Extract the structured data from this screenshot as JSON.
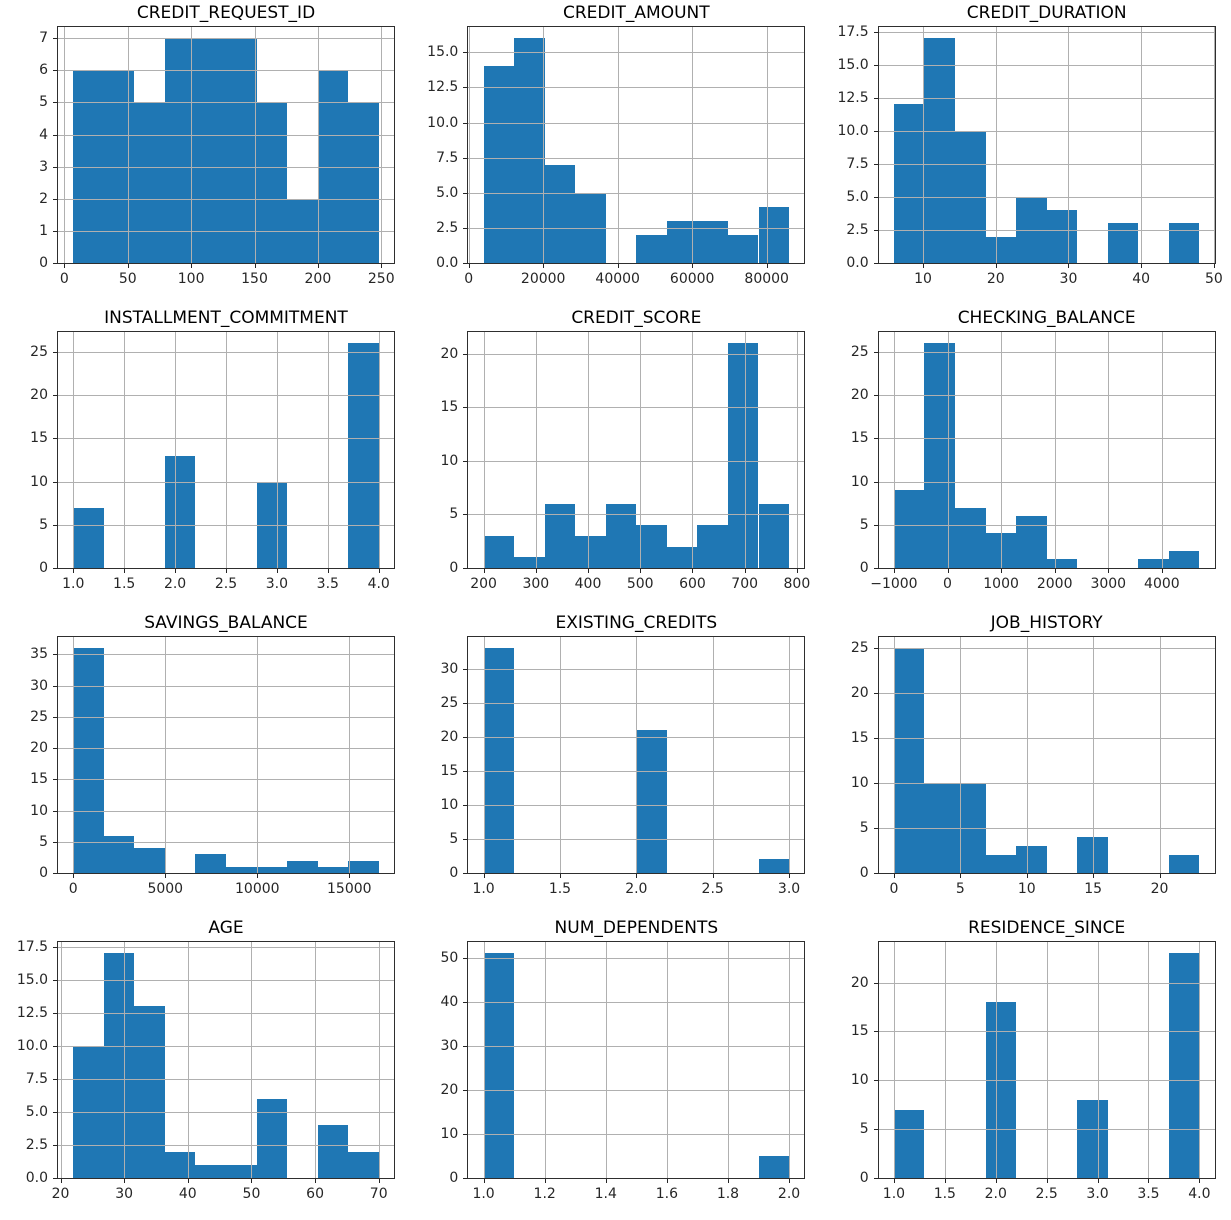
{
  "figure": {
    "background": "#ffffff",
    "bar_color": "#1f77b4",
    "grid_color": "#b0b0b0",
    "spine_color": "#2e2e2e",
    "text_color": "#262626",
    "title_color": "#000000"
  },
  "grid": {
    "rows": 4,
    "cols": 3
  },
  "chart_data": [
    {
      "type": "bar",
      "subtype": "histogram",
      "title": "CREDIT_REQUEST_ID",
      "bin_start": 7,
      "bin_end": 248,
      "counts": [
        6,
        6,
        5,
        7,
        7,
        7,
        5,
        2,
        6,
        5
      ],
      "xlim": [
        -5.05,
        260.05
      ],
      "ylim": [
        0,
        7.35
      ],
      "x_ticks": [
        0,
        50,
        100,
        150,
        200,
        250
      ],
      "x_tick_labels": [
        "0",
        "50",
        "100",
        "150",
        "200",
        "250"
      ],
      "y_ticks": [
        0,
        1,
        2,
        3,
        4,
        5,
        6,
        7
      ],
      "y_tick_labels": [
        "0",
        "1",
        "2",
        "3",
        "4",
        "5",
        "6",
        "7"
      ],
      "grid": true
    },
    {
      "type": "bar",
      "subtype": "histogram",
      "title": "CREDIT_AMOUNT",
      "bin_start": 4000,
      "bin_end": 86000,
      "counts": [
        14,
        16,
        7,
        5,
        0,
        2,
        3,
        3,
        2,
        4
      ],
      "xlim": [
        -100,
        90100
      ],
      "ylim": [
        0,
        16.8
      ],
      "x_ticks": [
        0,
        20000,
        40000,
        60000,
        80000
      ],
      "x_tick_labels": [
        "0",
        "20000",
        "40000",
        "60000",
        "80000"
      ],
      "y_ticks": [
        0,
        2.5,
        5,
        7.5,
        10,
        12.5,
        15
      ],
      "y_tick_labels": [
        "0.0",
        "2.5",
        "5.0",
        "7.5",
        "10.0",
        "12.5",
        "15.0"
      ],
      "grid": true
    },
    {
      "type": "bar",
      "subtype": "histogram",
      "title": "CREDIT_DURATION",
      "bin_start": 6,
      "bin_end": 48,
      "counts": [
        12,
        17,
        10,
        2,
        5,
        4,
        0,
        3,
        0,
        3
      ],
      "xlim": [
        3.9,
        50.1
      ],
      "ylim": [
        0,
        17.85
      ],
      "x_ticks": [
        10,
        20,
        30,
        40,
        50
      ],
      "x_tick_labels": [
        "10",
        "20",
        "30",
        "40",
        "50"
      ],
      "y_ticks": [
        0,
        2.5,
        5,
        7.5,
        10,
        12.5,
        15,
        17.5
      ],
      "y_tick_labels": [
        "0.0",
        "2.5",
        "5.0",
        "7.5",
        "10.0",
        "12.5",
        "15.0",
        "17.5"
      ],
      "grid": true
    },
    {
      "type": "bar",
      "subtype": "histogram",
      "title": "INSTALLMENT_COMMITMENT",
      "bin_start": 1,
      "bin_end": 4,
      "counts": [
        7,
        0,
        0,
        13,
        0,
        0,
        10,
        0,
        0,
        26
      ],
      "xlim": [
        0.85,
        4.15
      ],
      "ylim": [
        0,
        27.3
      ],
      "x_ticks": [
        1,
        1.5,
        2,
        2.5,
        3,
        3.5,
        4
      ],
      "x_tick_labels": [
        "1.0",
        "1.5",
        "2.0",
        "2.5",
        "3.0",
        "3.5",
        "4.0"
      ],
      "y_ticks": [
        0,
        5,
        10,
        15,
        20,
        25
      ],
      "y_tick_labels": [
        "0",
        "5",
        "10",
        "15",
        "20",
        "25"
      ],
      "grid": true
    },
    {
      "type": "bar",
      "subtype": "histogram",
      "title": "CREDIT_SCORE",
      "bin_start": 200,
      "bin_end": 785,
      "counts": [
        3,
        1,
        6,
        3,
        6,
        4,
        2,
        4,
        21,
        6
      ],
      "xlim": [
        170.75,
        814.25
      ],
      "ylim": [
        0,
        22.05
      ],
      "x_ticks": [
        200,
        300,
        400,
        500,
        600,
        700,
        800
      ],
      "x_tick_labels": [
        "200",
        "300",
        "400",
        "500",
        "600",
        "700",
        "800"
      ],
      "y_ticks": [
        0,
        5,
        10,
        15,
        20
      ],
      "y_tick_labels": [
        "0",
        "5",
        "10",
        "15",
        "20"
      ],
      "grid": true
    },
    {
      "type": "bar",
      "subtype": "histogram",
      "title": "CHECKING_BALANCE",
      "bin_start": -1000,
      "bin_end": 4700,
      "counts": [
        9,
        26,
        7,
        4,
        6,
        1,
        0,
        0,
        1,
        2
      ],
      "xlim": [
        -1285,
        4985
      ],
      "ylim": [
        0,
        27.3
      ],
      "x_ticks": [
        -1000,
        0,
        1000,
        2000,
        3000,
        4000
      ],
      "x_tick_labels": [
        "−1000",
        "0",
        "1000",
        "2000",
        "3000",
        "4000"
      ],
      "y_ticks": [
        0,
        5,
        10,
        15,
        20,
        25
      ],
      "y_tick_labels": [
        "0",
        "5",
        "10",
        "15",
        "20",
        "25"
      ],
      "grid": true
    },
    {
      "type": "bar",
      "subtype": "histogram",
      "title": "SAVINGS_BALANCE",
      "bin_start": 0,
      "bin_end": 16600,
      "counts": [
        36,
        6,
        4,
        0,
        3,
        1,
        1,
        2,
        1,
        2
      ],
      "xlim": [
        -830,
        17430
      ],
      "ylim": [
        0,
        37.8
      ],
      "x_ticks": [
        0,
        5000,
        10000,
        15000
      ],
      "x_tick_labels": [
        "0",
        "5000",
        "10000",
        "15000"
      ],
      "y_ticks": [
        0,
        5,
        10,
        15,
        20,
        25,
        30,
        35
      ],
      "y_tick_labels": [
        "0",
        "5",
        "10",
        "15",
        "20",
        "25",
        "30",
        "35"
      ],
      "grid": true
    },
    {
      "type": "bar",
      "subtype": "histogram",
      "title": "EXISTING_CREDITS",
      "bin_start": 1,
      "bin_end": 3,
      "counts": [
        33,
        0,
        0,
        0,
        0,
        21,
        0,
        0,
        0,
        2
      ],
      "xlim": [
        0.9,
        3.1
      ],
      "ylim": [
        0,
        34.65
      ],
      "x_ticks": [
        1,
        1.5,
        2,
        2.5,
        3
      ],
      "x_tick_labels": [
        "1.0",
        "1.5",
        "2.0",
        "2.5",
        "3.0"
      ],
      "y_ticks": [
        0,
        5,
        10,
        15,
        20,
        25,
        30
      ],
      "y_tick_labels": [
        "0",
        "5",
        "10",
        "15",
        "20",
        "25",
        "30"
      ],
      "grid": true
    },
    {
      "type": "bar",
      "subtype": "histogram",
      "title": "JOB_HISTORY",
      "bin_start": 0,
      "bin_end": 23,
      "counts": [
        25,
        10,
        10,
        2,
        3,
        0,
        4,
        0,
        0,
        2
      ],
      "xlim": [
        -1.15,
        24.15
      ],
      "ylim": [
        0,
        26.25
      ],
      "x_ticks": [
        0,
        5,
        10,
        15,
        20
      ],
      "x_tick_labels": [
        "0",
        "5",
        "10",
        "15",
        "20"
      ],
      "y_ticks": [
        0,
        5,
        10,
        15,
        20,
        25
      ],
      "y_tick_labels": [
        "0",
        "5",
        "10",
        "15",
        "20",
        "25"
      ],
      "grid": true
    },
    {
      "type": "bar",
      "subtype": "histogram",
      "title": "AGE",
      "bin_start": 22,
      "bin_end": 70,
      "counts": [
        10,
        17,
        13,
        2,
        1,
        1,
        6,
        0,
        4,
        2
      ],
      "xlim": [
        19.6,
        72.4
      ],
      "ylim": [
        0,
        17.85
      ],
      "x_ticks": [
        20,
        30,
        40,
        50,
        60,
        70
      ],
      "x_tick_labels": [
        "20",
        "30",
        "40",
        "50",
        "60",
        "70"
      ],
      "y_ticks": [
        0,
        2.5,
        5,
        7.5,
        10,
        12.5,
        15,
        17.5
      ],
      "y_tick_labels": [
        "0.0",
        "2.5",
        "5.0",
        "7.5",
        "10.0",
        "12.5",
        "15.0",
        "17.5"
      ],
      "grid": true
    },
    {
      "type": "bar",
      "subtype": "histogram",
      "title": "NUM_DEPENDENTS",
      "bin_start": 1,
      "bin_end": 2,
      "counts": [
        51,
        0,
        0,
        0,
        0,
        0,
        0,
        0,
        0,
        5
      ],
      "xlim": [
        0.95,
        2.05
      ],
      "ylim": [
        0,
        53.55
      ],
      "x_ticks": [
        1,
        1.2,
        1.4,
        1.6,
        1.8,
        2
      ],
      "x_tick_labels": [
        "1.0",
        "1.2",
        "1.4",
        "1.6",
        "1.8",
        "2.0"
      ],
      "y_ticks": [
        0,
        10,
        20,
        30,
        40,
        50
      ],
      "y_tick_labels": [
        "0",
        "10",
        "20",
        "30",
        "40",
        "50"
      ],
      "grid": true
    },
    {
      "type": "bar",
      "subtype": "histogram",
      "title": "RESIDENCE_SINCE",
      "bin_start": 1,
      "bin_end": 4,
      "counts": [
        7,
        0,
        0,
        18,
        0,
        0,
        8,
        0,
        0,
        23
      ],
      "xlim": [
        0.85,
        4.15
      ],
      "ylim": [
        0,
        24.15
      ],
      "x_ticks": [
        1,
        1.5,
        2,
        2.5,
        3,
        3.5,
        4
      ],
      "x_tick_labels": [
        "1.0",
        "1.5",
        "2.0",
        "2.5",
        "3.0",
        "3.5",
        "4.0"
      ],
      "y_ticks": [
        0,
        5,
        10,
        15,
        20
      ],
      "y_tick_labels": [
        "0",
        "5",
        "10",
        "15",
        "20"
      ],
      "grid": true
    }
  ]
}
